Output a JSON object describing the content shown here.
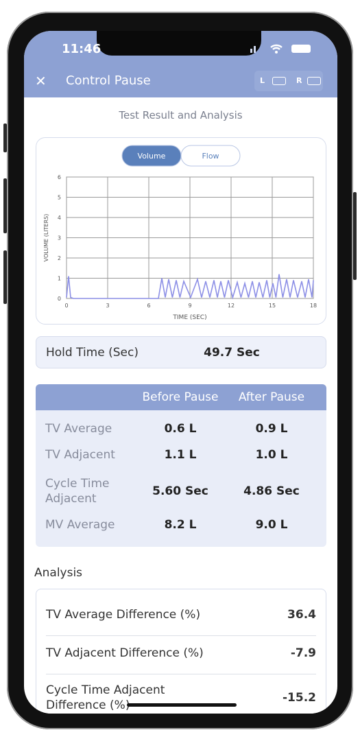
{
  "status_bar": {
    "time": "11:46"
  },
  "header": {
    "title": "Control Pause",
    "left_label": "L",
    "right_label": "R"
  },
  "section_title": "Test Result and Analysis",
  "chart_data": {
    "type": "line",
    "toggle_options": [
      "Volume",
      "Flow"
    ],
    "selected_toggle": 0,
    "x_label": "TIME (SEC)",
    "y_label": "VOLUME (LITERS)",
    "x": [
      0,
      0.15,
      0.3,
      0.5,
      6.7,
      6.95,
      7.2,
      7.45,
      7.72,
      8.0,
      8.27,
      8.55,
      9.05,
      9.55,
      9.85,
      10.15,
      10.45,
      10.75,
      11.0,
      11.25,
      11.52,
      11.8,
      12.12,
      12.45,
      12.72,
      13.0,
      13.27,
      13.55,
      13.8,
      14.05,
      14.32,
      14.6,
      14.82,
      15.05,
      15.27,
      15.5,
      15.77,
      16.05,
      16.3,
      16.55,
      16.85,
      17.15,
      17.4,
      17.65,
      17.9,
      18
    ],
    "values": [
      0.05,
      1.1,
      0.05,
      0,
      0,
      1.0,
      0.05,
      0.95,
      0.05,
      0.9,
      0.05,
      0.85,
      0.05,
      0.95,
      0.05,
      0.85,
      0.05,
      0.9,
      0.05,
      0.85,
      0.05,
      0.9,
      0.05,
      0.8,
      0.05,
      0.75,
      0.05,
      0.85,
      0.05,
      0.8,
      0.05,
      0.9,
      0.05,
      0.75,
      0.05,
      1.2,
      0.05,
      0.95,
      0.05,
      0.9,
      0.05,
      0.85,
      0.05,
      0.95,
      0.05,
      0.9
    ],
    "color": "#8c8fe6",
    "xlim": [
      0,
      18
    ],
    "ylim": [
      0,
      6
    ],
    "xticks": [
      0,
      3,
      6,
      9,
      12,
      15,
      18
    ],
    "yticks": [
      0,
      1,
      2,
      3,
      4,
      5,
      6
    ],
    "grid": true
  },
  "hold_time": {
    "label": "Hold Time (Sec)",
    "value": "49.7 Sec"
  },
  "comparison_table": {
    "columns": [
      "Before Pause",
      "After Pause"
    ],
    "rows": [
      [
        "TV Average",
        "0.6 L",
        "0.9 L"
      ],
      [
        "TV Adjacent",
        "1.1 L",
        "1.0 L"
      ],
      [
        "Cycle Time Adjacent",
        "5.60 Sec",
        "4.86 Sec"
      ],
      [
        "MV Average",
        "8.2 L",
        "9.0 L"
      ]
    ]
  },
  "analysis": {
    "title": "Analysis",
    "rows": [
      [
        "TV Average Difference (%)",
        "36.4"
      ],
      [
        "TV Adjacent Difference (%)",
        "-7.9"
      ],
      [
        "Cycle Time Adjacent Difference (%)",
        "-15.2"
      ]
    ]
  }
}
